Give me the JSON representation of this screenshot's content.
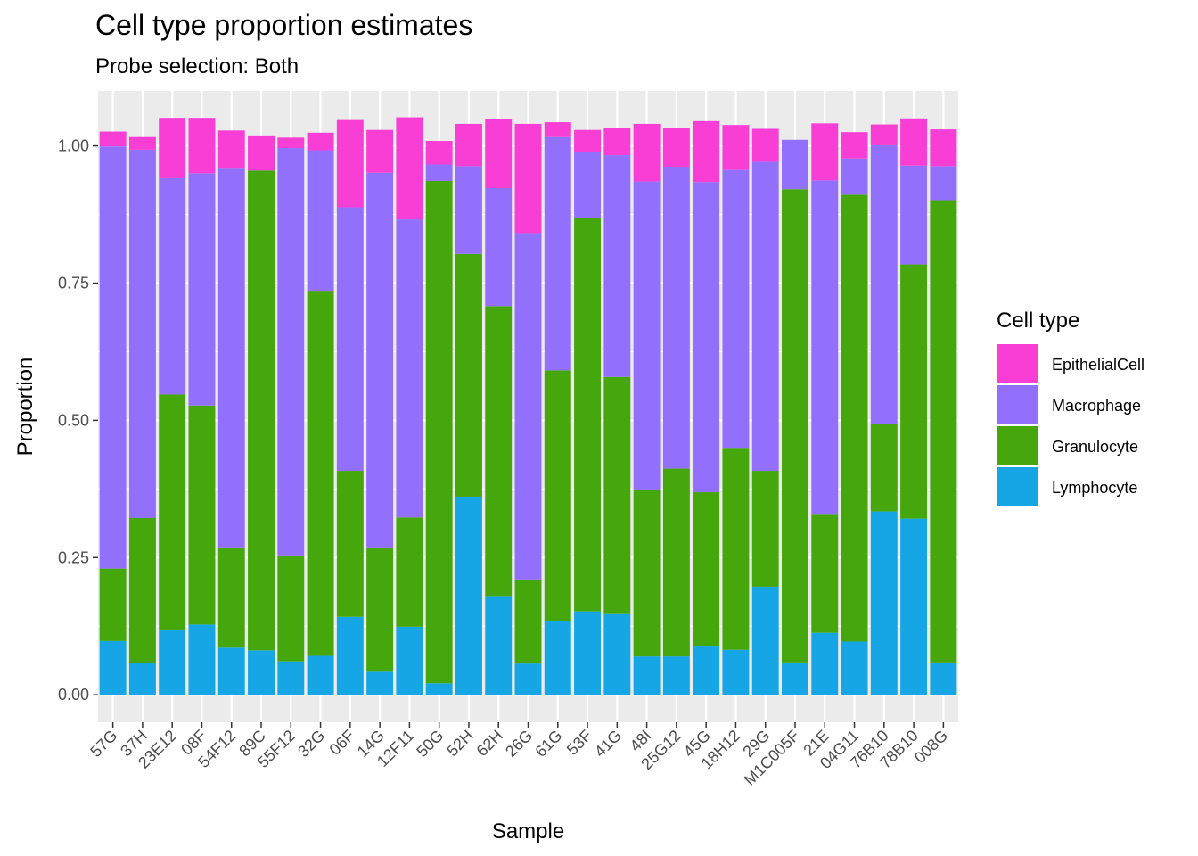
{
  "chart_data": {
    "type": "bar",
    "stacked": true,
    "title": "Cell type proportion estimates",
    "subtitle": "Probe selection: Both",
    "xlabel": "Sample",
    "ylabel": "Proportion",
    "ylim": [
      -0.05,
      1.1
    ],
    "yticks": [
      0,
      0.25,
      0.5,
      0.75,
      1.0
    ],
    "ytick_labels": [
      "0.00",
      "0.25",
      "0.50",
      "0.75",
      "1.00"
    ],
    "grid": true,
    "legend": {
      "title": "Cell type",
      "position": "right"
    },
    "categories": [
      "57G",
      "37H",
      "23E12",
      "08F",
      "54F12",
      "89C",
      "55F12",
      "32G",
      "06F",
      "14G",
      "12F11",
      "50G",
      "52H",
      "62H",
      "26G",
      "61G",
      "53F",
      "41G",
      "48I",
      "25G12",
      "45G",
      "18H12",
      "29G",
      "M1C005F",
      "21E",
      "04G11",
      "76B10",
      "78B10",
      "008G"
    ],
    "series": [
      {
        "name": "Lymphocyte",
        "color": "#17a6e5",
        "values": [
          0.098,
          0.058,
          0.119,
          0.128,
          0.086,
          0.081,
          0.061,
          0.071,
          0.142,
          0.042,
          0.124,
          0.021,
          0.361,
          0.18,
          0.057,
          0.134,
          0.152,
          0.147,
          0.07,
          0.07,
          0.088,
          0.082,
          0.197,
          0.059,
          0.113,
          0.097,
          0.334,
          0.321,
          0.059
        ]
      },
      {
        "name": "Granulocyte",
        "color": "#45a70c",
        "values": [
          0.132,
          0.264,
          0.428,
          0.399,
          0.181,
          0.874,
          0.193,
          0.665,
          0.266,
          0.225,
          0.199,
          0.915,
          0.442,
          0.528,
          0.153,
          0.457,
          0.716,
          0.432,
          0.304,
          0.342,
          0.281,
          0.368,
          0.211,
          0.862,
          0.215,
          0.814,
          0.159,
          0.463,
          0.842
        ]
      },
      {
        "name": "Macrophage",
        "color": "#9370fb",
        "values": [
          0.769,
          0.671,
          0.394,
          0.423,
          0.693,
          0.0,
          0.742,
          0.256,
          0.48,
          0.684,
          0.543,
          0.03,
          0.16,
          0.215,
          0.631,
          0.425,
          0.12,
          0.404,
          0.561,
          0.55,
          0.565,
          0.506,
          0.563,
          0.09,
          0.609,
          0.066,
          0.508,
          0.18,
          0.062
        ]
      },
      {
        "name": "EpithelialCell",
        "color": "#f83ed4",
        "values": [
          0.027,
          0.023,
          0.11,
          0.101,
          0.068,
          0.064,
          0.019,
          0.032,
          0.159,
          0.078,
          0.186,
          0.043,
          0.077,
          0.126,
          0.199,
          0.027,
          0.041,
          0.049,
          0.105,
          0.071,
          0.111,
          0.082,
          0.06,
          0.0,
          0.104,
          0.048,
          0.038,
          0.086,
          0.067
        ]
      }
    ]
  }
}
